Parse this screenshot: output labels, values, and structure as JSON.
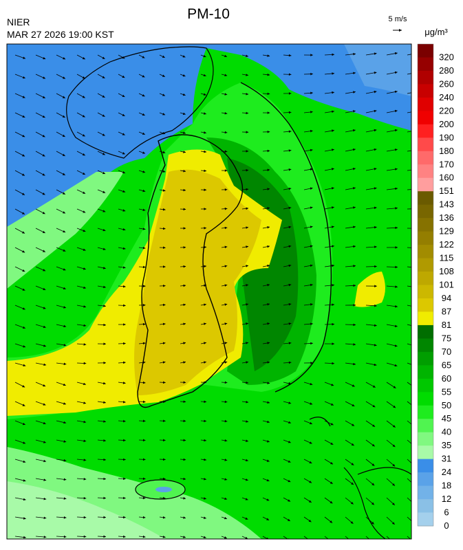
{
  "header": {
    "title": "PM-10",
    "agency": "NIER",
    "timestamp": "MAR 27 2026 19:00 KST",
    "wind_scale": "5 m/s",
    "unit": "μg/m³"
  },
  "legend": {
    "items": [
      {
        "label": 320,
        "color": "#7a0000"
      },
      {
        "label": 280,
        "color": "#960000"
      },
      {
        "label": 260,
        "color": "#b00000"
      },
      {
        "label": 240,
        "color": "#c80000"
      },
      {
        "label": 220,
        "color": "#e00000"
      },
      {
        "label": 200,
        "color": "#f00000"
      },
      {
        "label": 190,
        "color": "#ff2020"
      },
      {
        "label": 180,
        "color": "#ff4a4a"
      },
      {
        "label": 170,
        "color": "#ff6a6a"
      },
      {
        "label": 160,
        "color": "#ff8282"
      },
      {
        "label": 151,
        "color": "#ff9e9e"
      },
      {
        "label": 143,
        "color": "#6a5a00"
      },
      {
        "label": 136,
        "color": "#786600"
      },
      {
        "label": 129,
        "color": "#867200"
      },
      {
        "label": 122,
        "color": "#947e00"
      },
      {
        "label": 115,
        "color": "#a28c00"
      },
      {
        "label": 108,
        "color": "#b09a00"
      },
      {
        "label": 101,
        "color": "#bea800"
      },
      {
        "label": 94,
        "color": "#ccb800"
      },
      {
        "label": 87,
        "color": "#dcc800"
      },
      {
        "label": 81,
        "color": "#f0ec00"
      },
      {
        "label": 75,
        "color": "#006e00"
      },
      {
        "label": 70,
        "color": "#008600"
      },
      {
        "label": 65,
        "color": "#009e00"
      },
      {
        "label": 60,
        "color": "#00b400"
      },
      {
        "label": 55,
        "color": "#00c800"
      },
      {
        "label": 50,
        "color": "#00dc00"
      },
      {
        "label": 45,
        "color": "#1eec1e"
      },
      {
        "label": 40,
        "color": "#50f450"
      },
      {
        "label": 35,
        "color": "#80f880"
      },
      {
        "label": 31,
        "color": "#a8faa8"
      },
      {
        "label": 24,
        "color": "#3a8ee8"
      },
      {
        "label": 18,
        "color": "#5aa2e8"
      },
      {
        "label": 12,
        "color": "#72b2e8"
      },
      {
        "label": 6,
        "color": "#8ac0e6"
      },
      {
        "label": 0,
        "color": "#a4d0ec"
      }
    ]
  }
}
